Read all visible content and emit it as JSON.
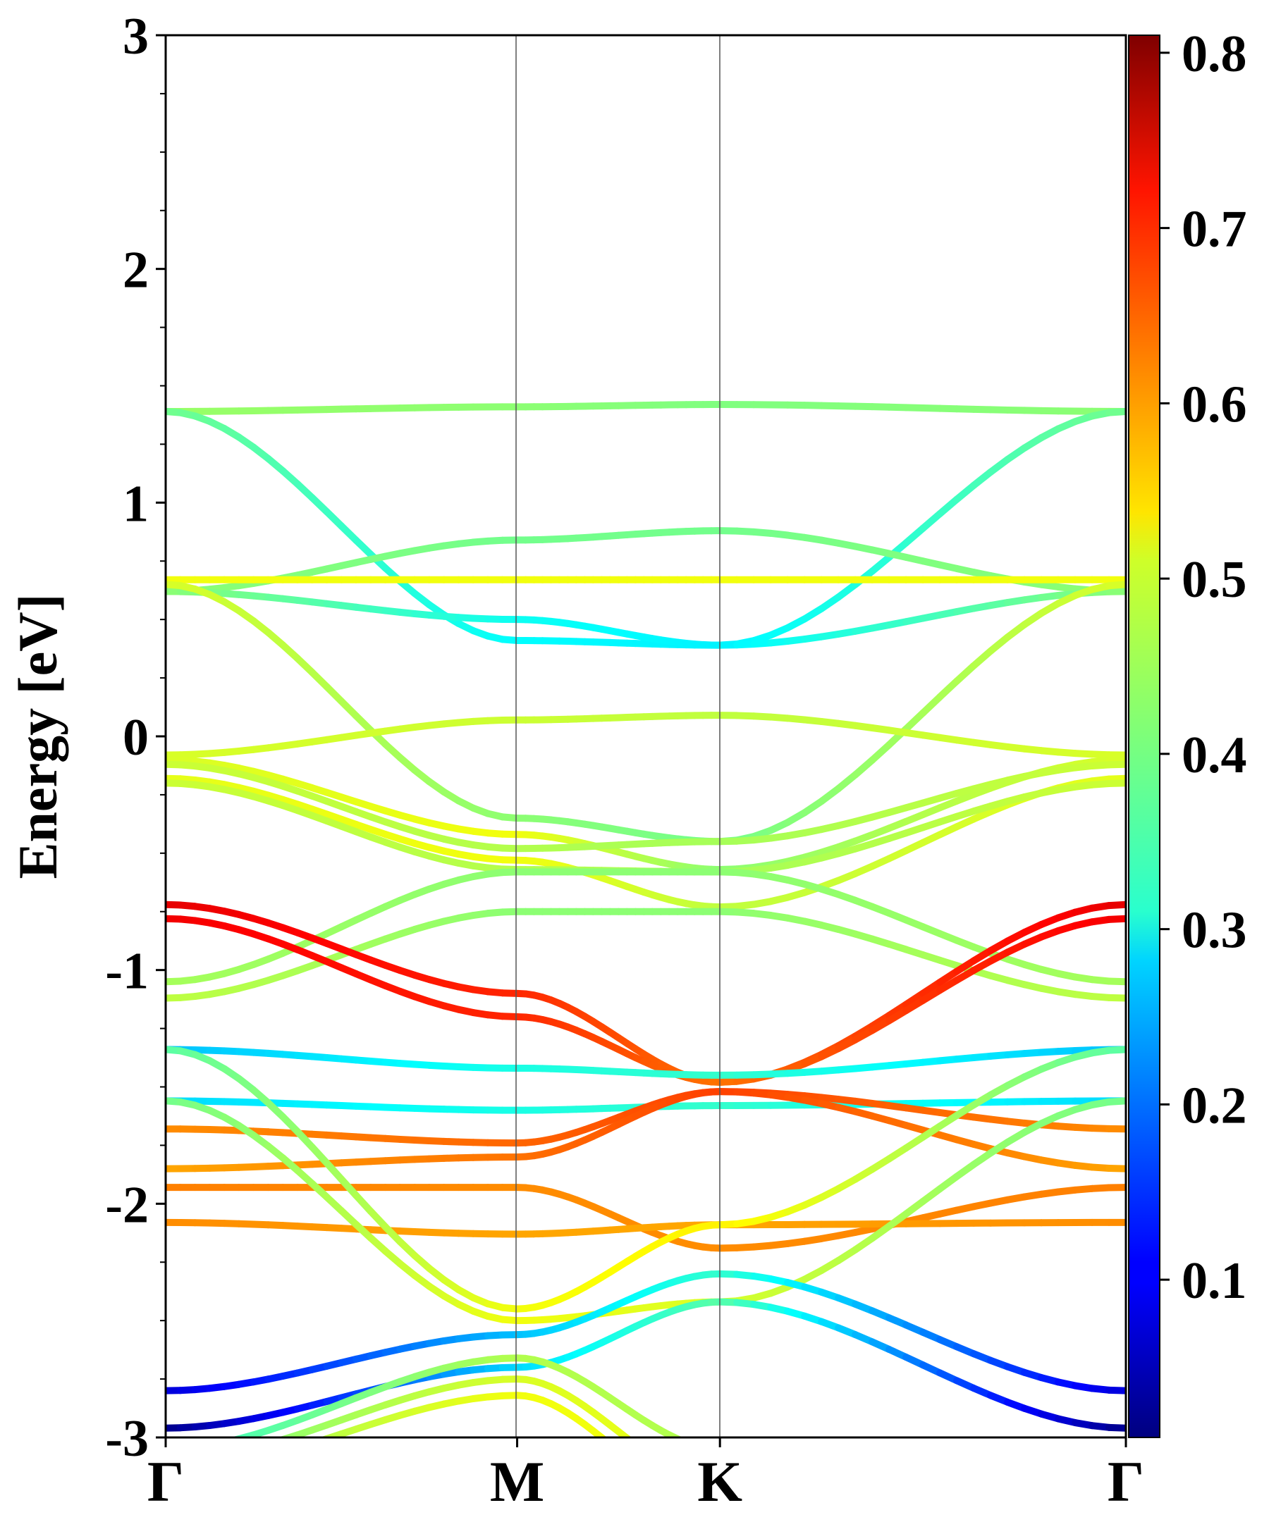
{
  "chart_data": {
    "type": "line",
    "title": "",
    "xlabel": "",
    "ylabel": "Energy [eV]",
    "ylim": [
      -3,
      3
    ],
    "yticks": [
      "-3",
      "-2",
      "-1",
      "0",
      "1",
      "2",
      "3"
    ],
    "kpath_labels": [
      "Γ",
      "M",
      "K",
      "Γ"
    ],
    "kpath_positions": [
      0,
      1,
      1.577,
      2.732
    ],
    "grid": false,
    "colorbar": {
      "colormap": "jet",
      "range": [
        0.01,
        0.81
      ],
      "ticks": [
        "0.1",
        "0.2",
        "0.3",
        "0.4",
        "0.5",
        "0.6",
        "0.7",
        "0.8"
      ]
    },
    "series": [
      {
        "e": [
          1.39,
          1.41,
          1.42,
          1.39
        ],
        "w": [
          0.43,
          0.42,
          0.41,
          0.42
        ]
      },
      {
        "e": [
          1.39,
          0.41,
          0.39,
          1.39
        ],
        "w": [
          0.4,
          0.31,
          0.3,
          0.4
        ]
      },
      {
        "e": [
          0.62,
          0.84,
          0.88,
          0.62
        ],
        "w": [
          0.42,
          0.4,
          0.4,
          0.42
        ]
      },
      {
        "e": [
          0.62,
          0.5,
          0.39,
          0.62
        ],
        "w": [
          0.42,
          0.32,
          0.3,
          0.42
        ]
      },
      {
        "e": [
          0.67,
          0.67,
          0.67,
          0.67
        ],
        "w": [
          0.5,
          0.5,
          0.5,
          0.5
        ]
      },
      {
        "e": [
          0.65,
          -0.35,
          -0.45,
          0.65
        ],
        "w": [
          0.48,
          0.42,
          0.4,
          0.48
        ]
      },
      {
        "e": [
          -0.08,
          0.07,
          0.09,
          -0.08
        ],
        "w": [
          0.48,
          0.47,
          0.46,
          0.48
        ]
      },
      {
        "e": [
          -0.1,
          -0.42,
          -0.57,
          -0.1
        ],
        "w": [
          0.48,
          0.5,
          0.42,
          0.48
        ]
      },
      {
        "e": [
          -0.12,
          -0.48,
          -0.45,
          -0.12
        ],
        "w": [
          0.47,
          0.45,
          0.44,
          0.47
        ]
      },
      {
        "e": [
          -0.18,
          -0.53,
          -0.73,
          -0.18
        ],
        "w": [
          0.49,
          0.5,
          0.46,
          0.49
        ]
      },
      {
        "e": [
          -0.2,
          -0.57,
          -0.58,
          -0.2
        ],
        "w": [
          0.47,
          0.45,
          0.44,
          0.47
        ]
      },
      {
        "e": [
          -1.05,
          -0.58,
          -0.58,
          -1.05
        ],
        "w": [
          0.44,
          0.42,
          0.42,
          0.44
        ]
      },
      {
        "e": [
          -1.12,
          -0.75,
          -0.75,
          -1.12
        ],
        "w": [
          0.46,
          0.42,
          0.42,
          0.46
        ]
      },
      {
        "e": [
          -0.72,
          -1.1,
          -1.48,
          -0.72
        ],
        "w": [
          0.73,
          0.68,
          0.62,
          0.73
        ]
      },
      {
        "e": [
          -0.78,
          -1.2,
          -1.48,
          -0.78
        ],
        "w": [
          0.72,
          0.68,
          0.62,
          0.72
        ]
      },
      {
        "e": [
          -1.34,
          -1.42,
          -1.45,
          -1.34
        ],
        "w": [
          0.26,
          0.33,
          0.35,
          0.26
        ]
      },
      {
        "e": [
          -1.56,
          -1.6,
          -1.58,
          -1.56
        ],
        "w": [
          0.28,
          0.33,
          0.35,
          0.28
        ]
      },
      {
        "e": [
          -1.68,
          -1.74,
          -1.52,
          -1.68
        ],
        "w": [
          0.6,
          0.63,
          0.66,
          0.6
        ]
      },
      {
        "e": [
          -1.85,
          -1.8,
          -1.52,
          -1.85
        ],
        "w": [
          0.58,
          0.62,
          0.66,
          0.58
        ]
      },
      {
        "e": [
          -1.93,
          -1.93,
          -2.19,
          -1.93
        ],
        "w": [
          0.61,
          0.6,
          0.6,
          0.61
        ]
      },
      {
        "e": [
          -2.08,
          -2.13,
          -2.09,
          -2.08
        ],
        "w": [
          0.6,
          0.58,
          0.58,
          0.6
        ]
      },
      {
        "e": [
          -1.34,
          -2.45,
          -2.09,
          -1.34
        ],
        "w": [
          0.38,
          0.5,
          0.52,
          0.38
        ]
      },
      {
        "e": [
          -1.56,
          -2.5,
          -2.42,
          -1.56
        ],
        "w": [
          0.4,
          0.5,
          0.48,
          0.4
        ]
      },
      {
        "e": [
          -2.8,
          -2.56,
          -2.3,
          -2.8
        ],
        "w": [
          0.08,
          0.26,
          0.35,
          0.08
        ]
      },
      {
        "e": [
          -2.96,
          -2.7,
          -2.42,
          -2.96
        ],
        "w": [
          0.02,
          0.28,
          0.38,
          0.02
        ]
      },
      {
        "e": [
          -3.05,
          -2.66,
          -3.05,
          -3.05
        ],
        "w": [
          0.35,
          0.45,
          0.45,
          0.35
        ]
      },
      {
        "e": [
          -3.1,
          -2.75,
          -3.2,
          -3.1
        ],
        "w": [
          0.4,
          0.48,
          0.5,
          0.4
        ]
      },
      {
        "e": [
          -3.15,
          -2.82,
          -3.3,
          -3.15
        ],
        "w": [
          0.42,
          0.5,
          0.5,
          0.42
        ]
      }
    ]
  }
}
